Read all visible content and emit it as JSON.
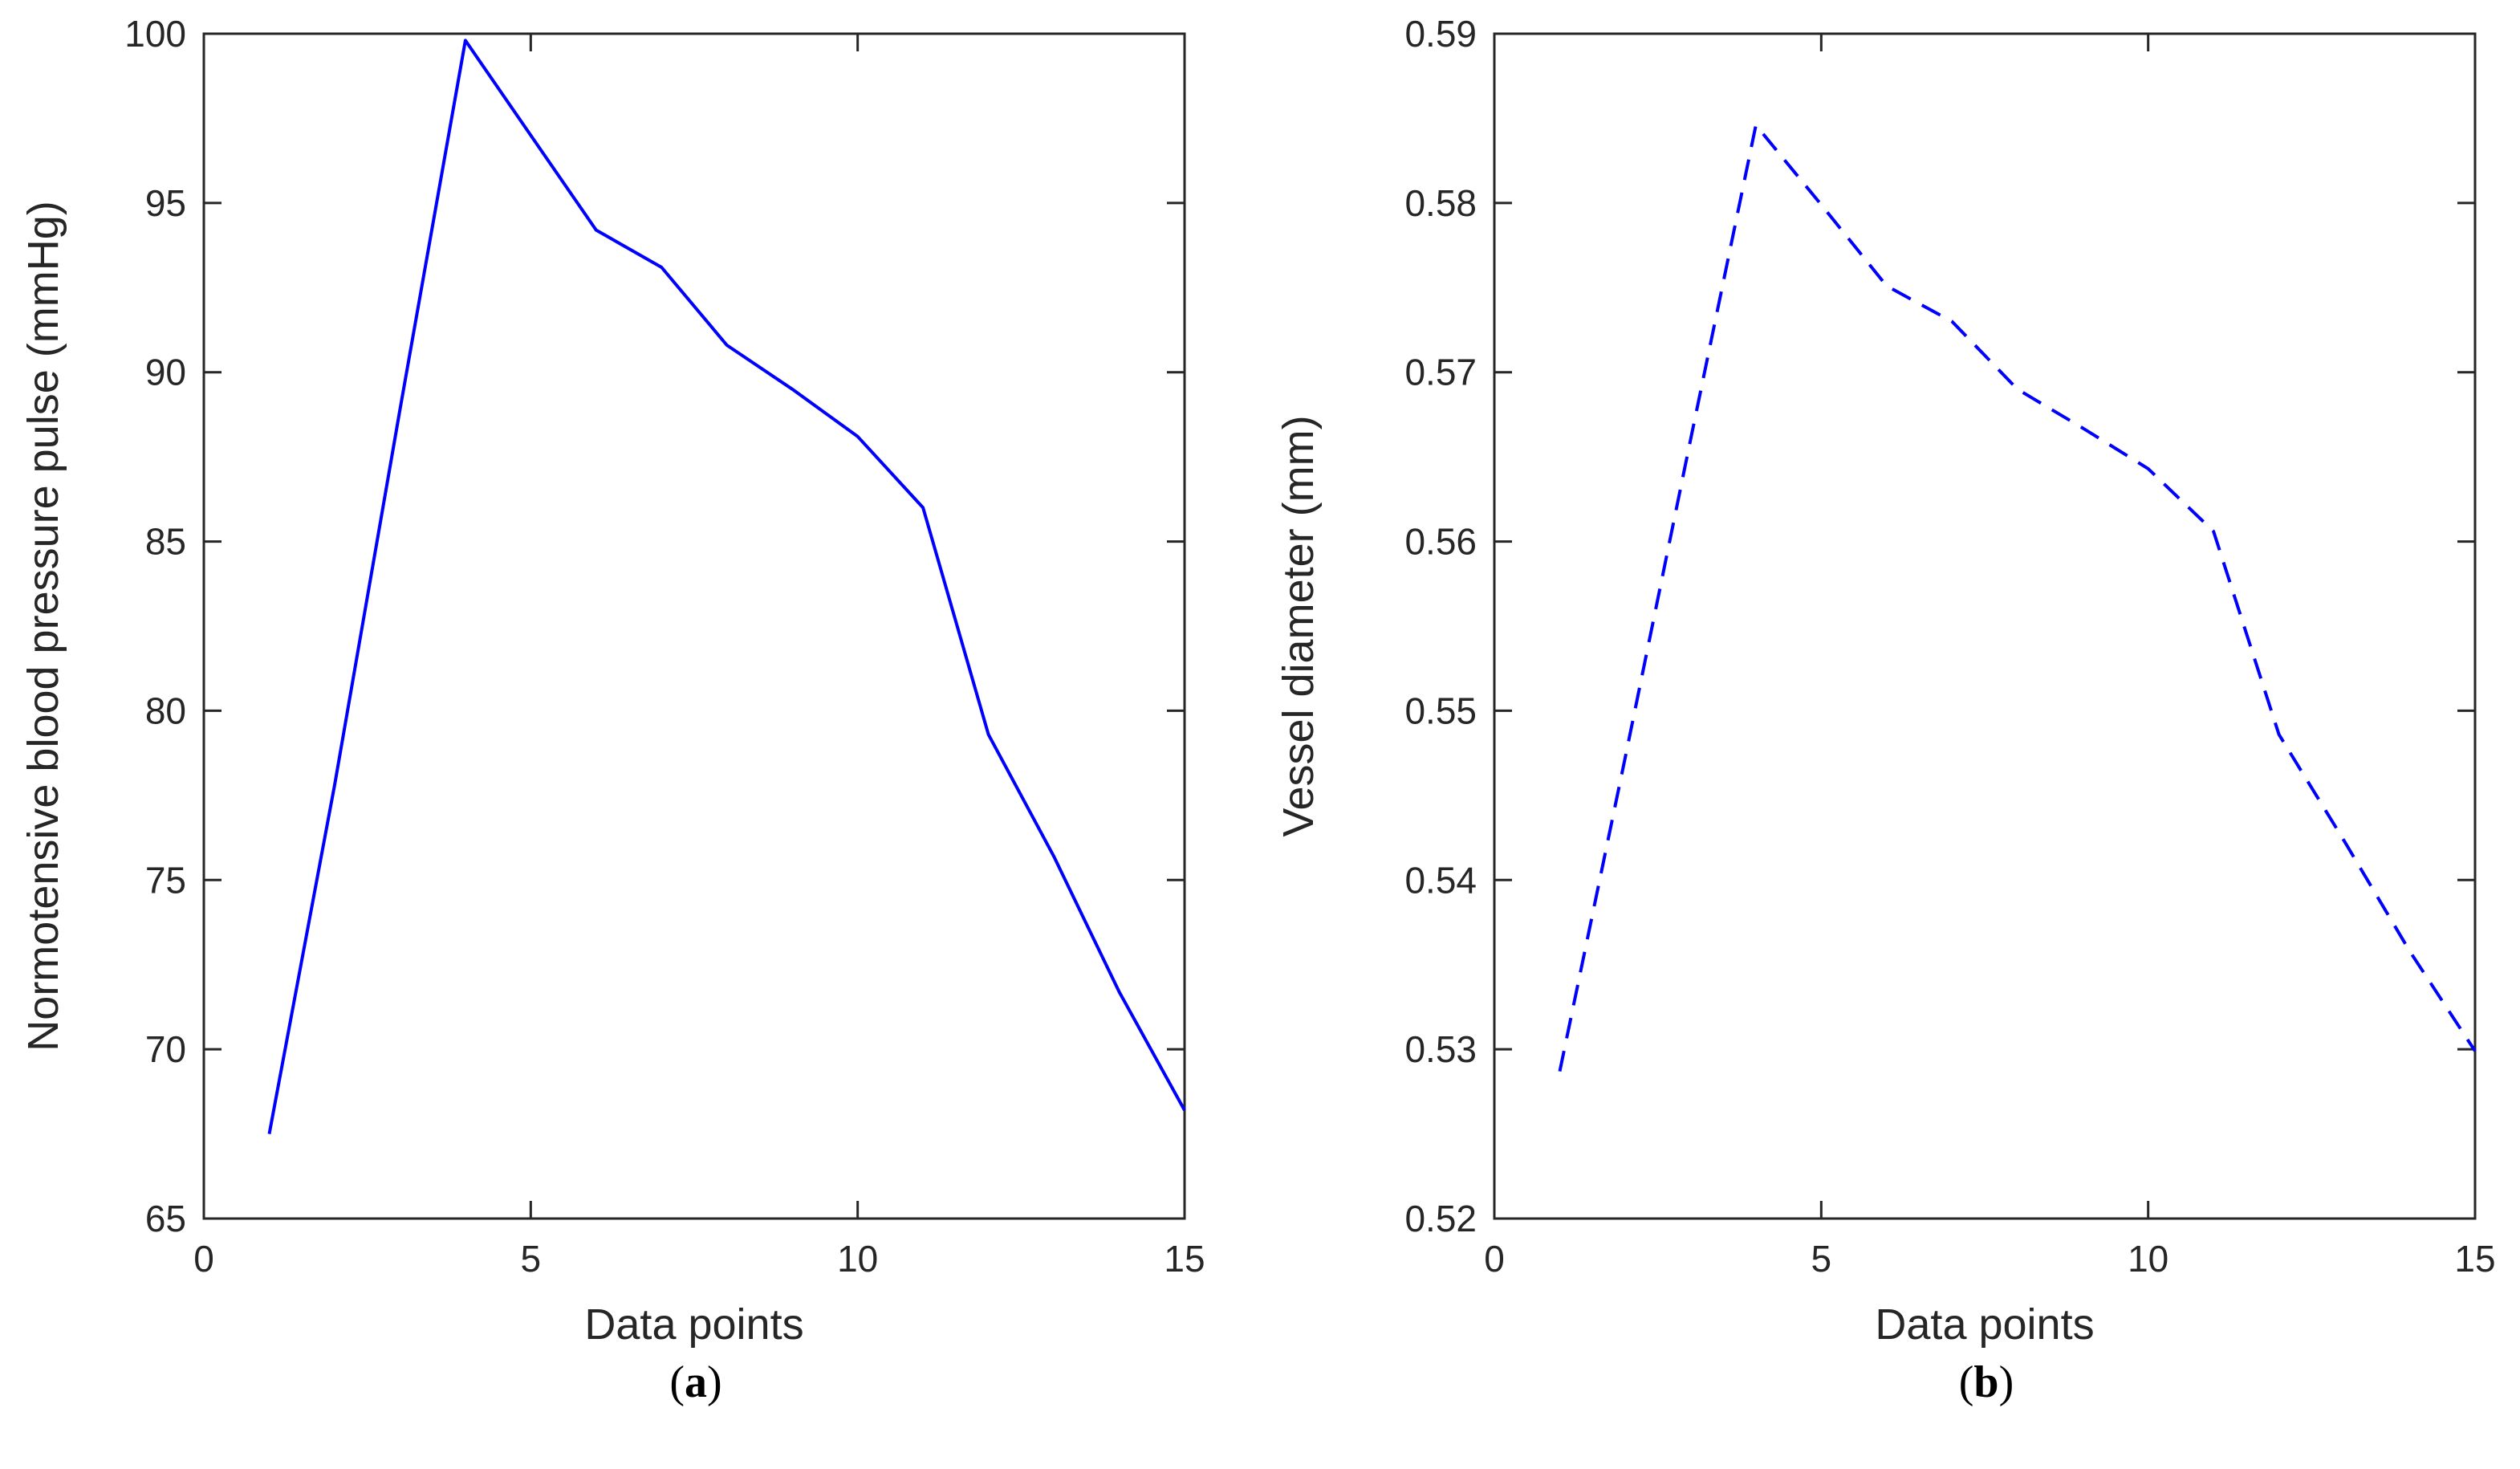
{
  "chart_data": [
    {
      "type": "line",
      "panel_label": "a",
      "xlabel": "Data points",
      "ylabel": "Normotensive blood pressure pulse (mmHg)",
      "xlim": [
        0,
        15
      ],
      "ylim": [
        65,
        100
      ],
      "xticks": [
        0,
        5,
        10,
        15
      ],
      "xtick_labels": [
        "0",
        "5",
        "10",
        "15"
      ],
      "yticks": [
        65,
        70,
        75,
        80,
        85,
        90,
        95,
        100
      ],
      "ytick_labels": [
        "65",
        "70",
        "75",
        "80",
        "85",
        "90",
        "95",
        "100"
      ],
      "grid": false,
      "series": [
        {
          "name": "pressure",
          "style": "solid",
          "color": "#0000ff",
          "x": [
            1,
            2,
            3,
            4,
            5,
            6,
            7,
            8,
            9,
            10,
            11,
            12,
            13,
            14,
            15
          ],
          "values": [
            67.5,
            77.8,
            88.9,
            99.8,
            97.0,
            94.2,
            93.1,
            90.8,
            89.5,
            88.1,
            86.0,
            79.3,
            75.7,
            71.7,
            68.2
          ]
        }
      ]
    },
    {
      "type": "line",
      "panel_label": "b",
      "xlabel": "Data points",
      "ylabel": "Vessel diameter (mm)",
      "xlim": [
        0,
        15
      ],
      "ylim": [
        0.52,
        0.59
      ],
      "xticks": [
        0,
        5,
        10,
        15
      ],
      "xtick_labels": [
        "0",
        "5",
        "10",
        "15"
      ],
      "yticks": [
        0.52,
        0.53,
        0.54,
        0.55,
        0.56,
        0.57,
        0.58,
        0.59
      ],
      "ytick_labels": [
        "0.52",
        "0.53",
        "0.54",
        "0.55",
        "0.56",
        "0.57",
        "0.58",
        "0.59"
      ],
      "grid": false,
      "series": [
        {
          "name": "diameter",
          "style": "dashed",
          "color": "#0000ff",
          "x": [
            1,
            2,
            3,
            4,
            5,
            6,
            7,
            8,
            9,
            10,
            11,
            12,
            13,
            14,
            15
          ],
          "values": [
            0.5287,
            0.5472,
            0.566,
            0.5846,
            0.5799,
            0.5751,
            0.573,
            0.569,
            0.5667,
            0.5643,
            0.5606,
            0.5486,
            0.5423,
            0.5358,
            0.5299
          ]
        }
      ]
    }
  ]
}
